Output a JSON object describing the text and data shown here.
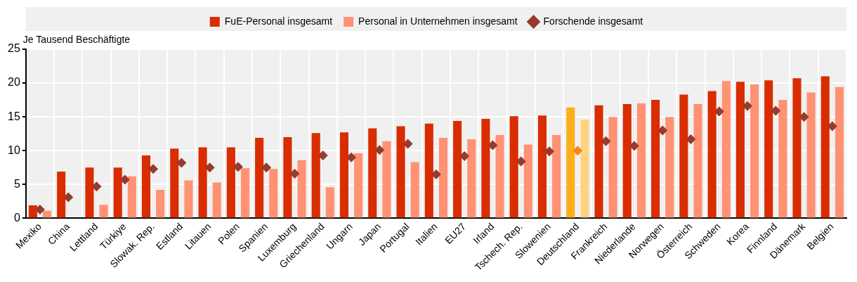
{
  "chart_data": {
    "type": "bar",
    "ylabel": "Je Tausend Beschäftigte",
    "categories": [
      "Mexiko",
      "China",
      "Lettland",
      "Türkiye",
      "Slowak. Rep.",
      "Estland",
      "Litauen",
      "Polen",
      "Spanien",
      "Luxemburg",
      "Griechenland",
      "Ungarn",
      "Japan",
      "Portugal",
      "Italien",
      "EU27",
      "Irland",
      "Tschech. Rep.",
      "Slowenien",
      "Deutschland",
      "Frankreich",
      "Niederlande",
      "Norwegen",
      "Österreich",
      "Schweden",
      "Korea",
      "Finnland",
      "Dänemark",
      "Belgien"
    ],
    "series": [
      {
        "name": "FuE-Personal insgesamt",
        "color": "#d92d00",
        "colors": [
          "#d92d00",
          "#d92d00",
          "#d92d00",
          "#d92d00",
          "#d92d00",
          "#d92d00",
          "#d92d00",
          "#d92d00",
          "#d92d00",
          "#d92d00",
          "#d92d00",
          "#d92d00",
          "#d92d00",
          "#d92d00",
          "#d92d00",
          "#d92d00",
          "#d92d00",
          "#d92d00",
          "#d92d00",
          "#fdaf1b",
          "#d92d00",
          "#d92d00",
          "#d92d00",
          "#d92d00",
          "#d92d00",
          "#d92d00",
          "#d92d00",
          "#d92d00",
          "#d92d00"
        ],
        "values": [
          1.9,
          6.9,
          7.5,
          7.5,
          9.3,
          10.3,
          10.5,
          10.5,
          11.9,
          12.0,
          12.6,
          12.7,
          13.3,
          13.6,
          14.0,
          14.4,
          14.7,
          15.1,
          15.2,
          16.4,
          16.7,
          16.9,
          17.5,
          18.3,
          18.8,
          20.2,
          20.4,
          20.7,
          21.0
        ]
      },
      {
        "name": "Personal in Unternehmen insgesamt",
        "color": "#ff9273",
        "colors": [
          "#ff9273",
          "#ff9273",
          "#ff9273",
          "#ff9273",
          "#ff9273",
          "#ff9273",
          "#ff9273",
          "#ff9273",
          "#ff9273",
          "#ff9273",
          "#ff9273",
          "#ff9273",
          "#ff9273",
          "#ff9273",
          "#ff9273",
          "#ff9273",
          "#ff9273",
          "#ff9273",
          "#ff9273",
          "#ffd47f",
          "#ff9273",
          "#ff9273",
          "#ff9273",
          "#ff9273",
          "#ff9273",
          "#ff9273",
          "#ff9273",
          "#ff9273",
          "#ff9273"
        ],
        "values": [
          1.1,
          null,
          2.0,
          6.2,
          4.2,
          5.6,
          5.3,
          7.4,
          7.3,
          8.6,
          4.6,
          9.6,
          11.4,
          8.3,
          11.9,
          11.7,
          12.3,
          10.9,
          12.3,
          14.6,
          15.0,
          17.0,
          15.0,
          16.9,
          20.3,
          19.8,
          17.5,
          18.6,
          19.4
        ]
      },
      {
        "name": "Forschende insgesamt",
        "type": "scatter",
        "marker": "diamond",
        "color": "#963b2e",
        "colors": [
          "#963b2e",
          "#963b2e",
          "#963b2e",
          "#963b2e",
          "#963b2e",
          "#963b2e",
          "#963b2e",
          "#963b2e",
          "#963b2e",
          "#963b2e",
          "#963b2e",
          "#963b2e",
          "#963b2e",
          "#963b2e",
          "#963b2e",
          "#963b2e",
          "#963b2e",
          "#963b2e",
          "#963b2e",
          "#f5861f",
          "#963b2e",
          "#963b2e",
          "#963b2e",
          "#963b2e",
          "#963b2e",
          "#963b2e",
          "#963b2e",
          "#963b2e",
          "#963b2e"
        ],
        "values": [
          1.3,
          3.1,
          4.7,
          5.7,
          7.3,
          8.2,
          7.5,
          7.6,
          7.5,
          6.6,
          9.3,
          9.0,
          10.1,
          11.0,
          6.5,
          9.2,
          10.8,
          8.4,
          9.9,
          10.0,
          11.4,
          10.7,
          13.0,
          11.7,
          15.8,
          16.6,
          15.9,
          15.0,
          13.6
        ]
      }
    ],
    "ylim": [
      0,
      25
    ],
    "yticks": [
      0,
      5,
      10,
      15,
      20,
      25
    ],
    "grid": true,
    "legend": "top"
  }
}
